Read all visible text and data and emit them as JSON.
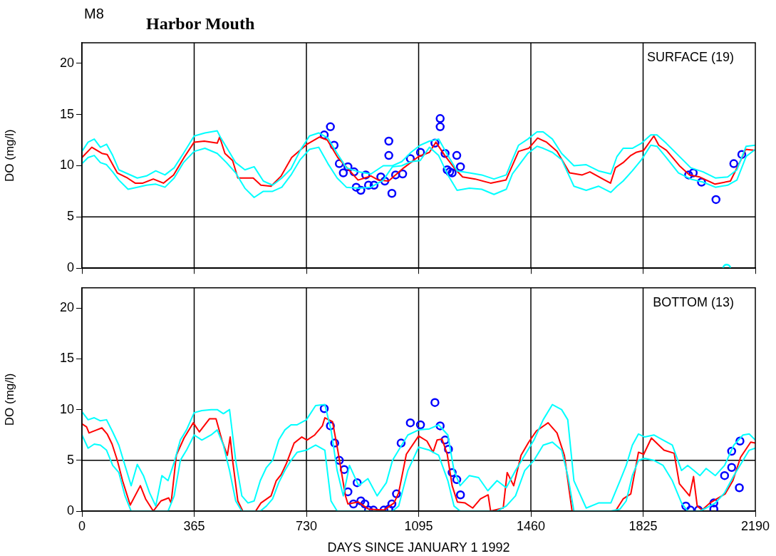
{
  "chart_data": [
    {
      "type": "line",
      "title": "Harbor Mouth",
      "ylabel": "DO (mg/l)",
      "annotations": [
        "M8",
        "SURFACE (19)"
      ],
      "xlim": [
        0,
        2190
      ],
      "xticks": [
        0,
        365,
        730,
        1095,
        1460,
        1825,
        2190
      ],
      "ylim": [
        0,
        22
      ],
      "yticks": [
        0,
        5,
        10,
        15,
        20
      ],
      "grid": false,
      "legend": false,
      "tick_labels": "y",
      "ref_lines": [
        {
          "axis": "x",
          "value": 365
        },
        {
          "axis": "x",
          "value": 730
        },
        {
          "axis": "x",
          "value": 1095
        },
        {
          "axis": "x",
          "value": 1460
        },
        {
          "axis": "x",
          "value": 1825
        },
        {
          "axis": "y",
          "value": 5
        }
      ],
      "series": [
        {
          "type": "line",
          "color": "#00ffff",
          "marker": "none",
          "x": [
            0,
            20,
            40,
            60,
            80,
            100,
            120,
            150,
            180,
            210,
            240,
            270,
            300,
            330,
            365,
            400,
            440,
            450,
            470,
            500,
            530,
            560,
            590,
            620,
            650,
            680,
            710,
            740,
            770,
            800,
            830,
            860,
            900,
            940,
            980,
            1010,
            1040,
            1070,
            1100,
            1130,
            1160,
            1190,
            1220,
            1260,
            1300,
            1340,
            1380,
            1400,
            1420,
            1450,
            1480,
            1500,
            1530,
            1560,
            1600,
            1640,
            1680,
            1720,
            1740,
            1760,
            1790,
            1820,
            1850,
            1870,
            1900,
            1940,
            1980,
            2020,
            2060,
            2100,
            2130,
            2160,
            2190
          ],
          "values": [
            11.4,
            12.3,
            12.6,
            11.8,
            12.1,
            11.0,
            9.6,
            9.2,
            8.8,
            9.0,
            9.5,
            9.1,
            9.8,
            11.2,
            12.9,
            13.2,
            13.4,
            12.8,
            11.8,
            10.3,
            9.6,
            9.9,
            8.5,
            8.1,
            8.8,
            9.7,
            11.5,
            12.9,
            13.2,
            12.7,
            11.2,
            9.8,
            9.4,
            9.2,
            10.0,
            10.0,
            10.4,
            11.3,
            12.0,
            12.4,
            12.6,
            11.0,
            9.5,
            9.3,
            9.1,
            8.7,
            9.1,
            10.6,
            12.0,
            12.6,
            13.3,
            13.3,
            12.6,
            11.2,
            10.0,
            10.1,
            9.5,
            9.2,
            10.9,
            11.7,
            11.7,
            12.2,
            13.0,
            13.0,
            12.2,
            11.0,
            9.8,
            9.4,
            8.8,
            8.9,
            9.6,
            11.9,
            12.0
          ]
        },
        {
          "type": "line",
          "color": "#00ffff",
          "marker": "none",
          "x": [
            0,
            20,
            40,
            60,
            80,
            100,
            120,
            150,
            180,
            210,
            240,
            270,
            300,
            330,
            365,
            400,
            440,
            450,
            470,
            500,
            530,
            560,
            590,
            620,
            650,
            680,
            710,
            740,
            770,
            800,
            830,
            860,
            900,
            940,
            980,
            1010,
            1040,
            1070,
            1100,
            1130,
            1160,
            1190,
            1220,
            1260,
            1300,
            1340,
            1380,
            1400,
            1420,
            1450,
            1480,
            1500,
            1530,
            1560,
            1600,
            1640,
            1680,
            1720,
            1740,
            1760,
            1790,
            1820,
            1850,
            1870,
            1900,
            1940,
            1980,
            2020,
            2060,
            2100,
            2130,
            2160,
            2190
          ],
          "values": [
            10.2,
            10.8,
            11.0,
            10.3,
            10.1,
            9.4,
            8.6,
            7.7,
            7.9,
            8.1,
            8.2,
            7.9,
            8.8,
            10.3,
            11.4,
            11.7,
            11.2,
            10.9,
            10.3,
            9.3,
            7.8,
            6.9,
            7.5,
            7.5,
            7.9,
            9.1,
            10.6,
            11.6,
            11.8,
            10.2,
            8.8,
            7.9,
            7.8,
            7.9,
            8.6,
            9.9,
            10.0,
            10.4,
            10.5,
            11.8,
            11.0,
            9.1,
            7.6,
            7.8,
            7.7,
            7.2,
            7.7,
            9.2,
            10.0,
            11.2,
            11.9,
            11.7,
            11.3,
            10.6,
            8.0,
            7.6,
            8.0,
            7.4,
            8.0,
            8.5,
            9.5,
            10.6,
            12.0,
            11.9,
            10.8,
            9.3,
            8.7,
            8.4,
            7.9,
            8.1,
            8.6,
            10.9,
            11.6
          ]
        },
        {
          "type": "line",
          "color": "#ff0000",
          "marker": "none",
          "x": [
            0,
            32,
            65,
            82,
            115,
            148,
            173,
            198,
            232,
            265,
            298,
            332,
            365,
            398,
            440,
            448,
            465,
            490,
            507,
            557,
            582,
            615,
            648,
            682,
            732,
            773,
            798,
            832,
            898,
            940,
            964,
            997,
            1047,
            1095,
            1130,
            1151,
            1180,
            1213,
            1238,
            1279,
            1329,
            1379,
            1395,
            1420,
            1453,
            1482,
            1511,
            1545,
            1586,
            1627,
            1652,
            1694,
            1719,
            1735,
            1760,
            1785,
            1802,
            1827,
            1860,
            1876,
            1901,
            1943,
            1976,
            2009,
            2059,
            2109,
            2142,
            2158,
            2190
          ],
          "values": [
            10.8,
            11.8,
            11.2,
            11.1,
            9.3,
            8.8,
            8.3,
            8.3,
            8.7,
            8.3,
            9.1,
            10.8,
            12.3,
            12.4,
            12.2,
            12.8,
            11.2,
            10.5,
            8.8,
            8.8,
            8.1,
            8.0,
            9.0,
            10.8,
            12.1,
            12.8,
            12.5,
            10.8,
            8.6,
            9.0,
            8.6,
            8.5,
            9.8,
            10.9,
            11.3,
            12.3,
            11.0,
            9.7,
            8.9,
            8.7,
            8.3,
            8.6,
            9.7,
            11.4,
            11.7,
            12.7,
            12.3,
            11.4,
            9.3,
            9.1,
            9.4,
            8.7,
            8.3,
            9.8,
            10.3,
            11.0,
            11.3,
            11.5,
            12.9,
            12.0,
            11.5,
            10.0,
            9.1,
            8.9,
            8.2,
            8.5,
            10.5,
            11.6,
            11.5
          ]
        },
        {
          "type": "scatter",
          "color": "#0000ff",
          "marker": "circle",
          "x": [
            788,
            808,
            820,
            837,
            850,
            865,
            885,
            892,
            907,
            923,
            932,
            950,
            972,
            985,
            998,
            998,
            1008,
            1020,
            1043,
            1068,
            1101,
            1148,
            1165,
            1165,
            1181,
            1188,
            1196,
            1204,
            1219,
            1231,
            1973,
            1988,
            2015,
            2062,
            2120,
            2146
          ],
          "values": [
            13.0,
            13.8,
            12.0,
            10.2,
            9.3,
            9.9,
            9.4,
            7.9,
            7.6,
            9.1,
            8.1,
            8.1,
            8.9,
            8.5,
            12.4,
            11.0,
            7.3,
            9.1,
            9.2,
            10.7,
            11.3,
            12.2,
            14.6,
            13.8,
            11.2,
            9.6,
            9.4,
            9.3,
            11.0,
            9.9,
            9.1,
            9.3,
            8.4,
            6.7,
            10.2,
            11.1
          ]
        },
        {
          "type": "scatter",
          "color": "#00ffff",
          "marker": "circle",
          "x": [
            2097
          ],
          "values": [
            0
          ]
        }
      ]
    },
    {
      "type": "line",
      "xlabel": "DAYS SINCE JANUARY 1 1992",
      "ylabel": "DO (mg/l)",
      "annotations": [
        "BOTTOM (13)"
      ],
      "xlim": [
        0,
        2190
      ],
      "xticks": [
        0,
        365,
        730,
        1095,
        1460,
        1825,
        2190
      ],
      "ylim": [
        0,
        22
      ],
      "yticks": [
        0,
        5,
        10,
        15,
        20
      ],
      "grid": false,
      "legend": false,
      "ref_lines": [
        {
          "axis": "x",
          "value": 365
        },
        {
          "axis": "x",
          "value": 730
        },
        {
          "axis": "x",
          "value": 1095
        },
        {
          "axis": "x",
          "value": 1460
        },
        {
          "axis": "x",
          "value": 1825
        },
        {
          "axis": "y",
          "value": 5
        }
      ],
      "series": [
        {
          "type": "line",
          "color": "#00ffff",
          "marker": "none",
          "x": [
            0,
            20,
            40,
            60,
            80,
            100,
            120,
            140,
            160,
            180,
            200,
            220,
            240,
            260,
            280,
            300,
            320,
            340,
            365,
            390,
            420,
            440,
            460,
            480,
            500,
            520,
            540,
            560,
            580,
            600,
            620,
            640,
            660,
            680,
            700,
            730,
            760,
            790,
            810,
            830,
            850,
            870,
            900,
            930,
            960,
            990,
            1010,
            1030,
            1060,
            1095,
            1130,
            1160,
            1190,
            1210,
            1230,
            1260,
            1290,
            1320,
            1350,
            1380,
            1410,
            1440,
            1470,
            1500,
            1530,
            1560,
            1580,
            1600,
            1640,
            1680,
            1720,
            1750,
            1770,
            1790,
            1810,
            1830,
            1860,
            1890,
            1920,
            1950,
            1970,
            1990,
            2010,
            2030,
            2060,
            2090,
            2120,
            2150,
            2170,
            2190
          ],
          "values": [
            9.8,
            9.0,
            9.2,
            8.9,
            9.0,
            7.8,
            6.5,
            4.5,
            2.5,
            4.6,
            3.5,
            1.8,
            0.5,
            3.5,
            3.0,
            4.8,
            7.0,
            8.0,
            9.7,
            9.9,
            10.0,
            10.0,
            9.6,
            10.0,
            5.0,
            1.5,
            0.8,
            1.0,
            3.0,
            4.3,
            5.0,
            7.0,
            8.0,
            8.5,
            8.5,
            9.0,
            10.4,
            10.5,
            8.0,
            4.0,
            1.5,
            4.5,
            2.5,
            3.2,
            1.5,
            2.8,
            5.0,
            6.0,
            7.5,
            8.0,
            8.1,
            8.5,
            7.5,
            4.0,
            2.5,
            3.5,
            3.3,
            2.0,
            3.0,
            2.3,
            4.0,
            5.5,
            7.0,
            9.0,
            10.5,
            10.0,
            9.0,
            3.0,
            0.3,
            0.8,
            0.8,
            3.0,
            4.5,
            6.5,
            7.6,
            7.3,
            7.5,
            7.0,
            6.5,
            4.0,
            4.5,
            4.0,
            3.5,
            4.2,
            3.5,
            4.5,
            6.5,
            7.5,
            7.6,
            7.0
          ]
        },
        {
          "type": "line",
          "color": "#00ffff",
          "marker": "none",
          "x": [
            0,
            20,
            40,
            60,
            80,
            100,
            120,
            140,
            160,
            180,
            200,
            220,
            240,
            260,
            280,
            300,
            320,
            340,
            365,
            390,
            420,
            440,
            460,
            480,
            500,
            520,
            540,
            560,
            580,
            600,
            620,
            640,
            660,
            680,
            700,
            730,
            760,
            790,
            810,
            830,
            850,
            870,
            900,
            930,
            960,
            990,
            1010,
            1030,
            1060,
            1095,
            1130,
            1160,
            1190,
            1210,
            1230,
            1260,
            1290,
            1320,
            1350,
            1380,
            1410,
            1440,
            1470,
            1500,
            1530,
            1560,
            1580,
            1600,
            1640,
            1680,
            1720,
            1750,
            1770,
            1790,
            1810,
            1830,
            1860,
            1890,
            1920,
            1950,
            1970,
            1990,
            2010,
            2030,
            2060,
            2090,
            2120,
            2150,
            2170,
            2190
          ],
          "values": [
            7.5,
            6.2,
            6.6,
            6.5,
            6.0,
            4.5,
            3.8,
            1.5,
            0.0,
            null,
            null,
            null,
            null,
            null,
            0.0,
            1.5,
            5.0,
            6.0,
            7.5,
            7.0,
            7.5,
            8.0,
            6.5,
            4.0,
            1.0,
            0.0,
            null,
            null,
            0.0,
            0.5,
            1.2,
            2.8,
            4.0,
            5.0,
            5.8,
            6.0,
            6.5,
            6.0,
            1.0,
            0.0,
            null,
            null,
            null,
            null,
            null,
            null,
            0.0,
            0.5,
            4.0,
            6.3,
            6.0,
            5.5,
            3.0,
            0.5,
            0.0,
            null,
            null,
            null,
            0.0,
            0.5,
            1.5,
            4.0,
            5.0,
            6.5,
            6.8,
            6.0,
            3.5,
            0.0,
            null,
            null,
            0.0,
            0.2,
            1.0,
            3.5,
            5.0,
            5.2,
            5.0,
            4.5,
            3.0,
            0.8,
            0.0,
            null,
            0.0,
            0.3,
            0.8,
            1.8,
            3.5,
            5.0,
            6.0,
            6.2
          ]
        },
        {
          "type": "line",
          "color": "#ff0000",
          "marker": "none",
          "x": [
            0,
            15,
            23,
            48,
            65,
            82,
            98,
            115,
            132,
            157,
            190,
            207,
            232,
            257,
            282,
            290,
            307,
            332,
            362,
            382,
            415,
            436,
            457,
            473,
            482,
            490,
            507,
            523,
            565,
            582,
            615,
            632,
            648,
            665,
            690,
            715,
            732,
            757,
            782,
            790,
            815,
            832,
            857,
            865,
            898,
            932,
            982,
            1015,
            1030,
            1055,
            1095,
            1122,
            1142,
            1155,
            1171,
            1188,
            1204,
            1221,
            1246,
            1271,
            1296,
            1321,
            1329,
            1370,
            1383,
            1404,
            1428,
            1453,
            1478,
            1516,
            1545,
            1569,
            1594,
            1735,
            1760,
            1785,
            1810,
            1827,
            1852,
            1893,
            1926,
            1943,
            1976,
            1989,
            2001,
            2017,
            2042,
            2092,
            2117,
            2142,
            2175,
            2190
          ],
          "values": [
            8.6,
            8.3,
            7.7,
            8.0,
            8.2,
            7.6,
            6.6,
            5.0,
            3.0,
            0.6,
            2.5,
            1.2,
            0.0,
            1.0,
            1.3,
            0.8,
            5.5,
            7.2,
            8.7,
            7.8,
            9.1,
            9.1,
            6.8,
            5.5,
            7.3,
            5.0,
            1.0,
            0.0,
            0.0,
            0.8,
            1.5,
            3.0,
            3.6,
            4.7,
            6.7,
            7.3,
            7.0,
            7.5,
            8.4,
            9.2,
            8.8,
            6.0,
            1.5,
            0.7,
            0.9,
            0.2,
            0.1,
            0.8,
            1.8,
            5.6,
            7.4,
            6.9,
            5.8,
            7.0,
            7.1,
            5.6,
            2.5,
            0.9,
            0.8,
            0.3,
            1.2,
            1.6,
            0.0,
            0.3,
            3.8,
            2.5,
            5.5,
            6.8,
            7.9,
            8.7,
            7.7,
            5.5,
            0.0,
            0.0,
            1.2,
            1.7,
            5.8,
            5.6,
            7.2,
            6.0,
            5.7,
            2.7,
            1.5,
            3.4,
            0.5,
            0.1,
            0.8,
            1.7,
            3.0,
            5.3,
            6.8,
            6.7
          ]
        },
        {
          "type": "scatter",
          "color": "#0000ff",
          "marker": "circle",
          "x": [
            788,
            808,
            822,
            837,
            853,
            865,
            883,
            895,
            907,
            920,
            932,
            948,
            982,
            998,
            1008,
            1023,
            1038,
            1068,
            1101,
            1148,
            1165,
            1181,
            1192,
            1204,
            1219,
            1231,
            1964,
            1979,
            2005,
            2055,
            2055,
            2090,
            2113,
            2113,
            2140,
            2138
          ],
          "values": [
            10.1,
            8.4,
            6.7,
            5.0,
            4.1,
            1.9,
            0.7,
            2.8,
            1.0,
            0.7,
            0.1,
            0.1,
            0.1,
            0.2,
            0.7,
            1.7,
            6.7,
            8.7,
            8.5,
            10.7,
            8.4,
            7.0,
            6.1,
            3.8,
            3.1,
            1.6,
            0.5,
            0.1,
            0.1,
            0.8,
            0.2,
            3.5,
            4.3,
            5.9,
            6.9,
            2.3
          ]
        }
      ]
    }
  ]
}
